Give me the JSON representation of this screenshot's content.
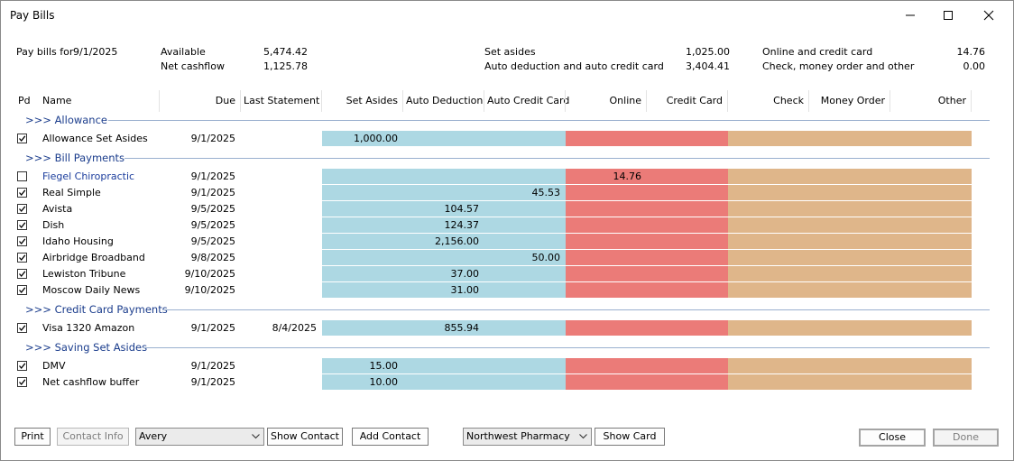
{
  "window": {
    "title": "Pay Bills"
  },
  "summary": {
    "pay_bills_for_label": "Pay bills for",
    "pay_bills_for_date": "9/1/2025",
    "available_label": "Available",
    "available_value": "5,474.42",
    "net_cashflow_label": "Net cashflow",
    "net_cashflow_value": "1,125.78",
    "set_asides_label": "Set asides",
    "set_asides_value": "1,025.00",
    "auto_label": "Auto deduction and auto credit card",
    "auto_value": "3,404.41",
    "online_label": "Online and credit card",
    "online_value": "14.76",
    "check_label": "Check, money order and other",
    "check_value": "0.00"
  },
  "columns": {
    "pd": "Pd",
    "name": "Name",
    "due": "Due",
    "last_statement": "Last Statement",
    "set_asides": "Set Asides",
    "auto_deduction": "Auto Deduction",
    "auto_credit_card": "Auto Credit Card",
    "online": "Online",
    "credit_card": "Credit Card",
    "check": "Check",
    "money_order": "Money Order",
    "other": "Other"
  },
  "groups": [
    {
      "label": ">>>  Allowance"
    },
    {
      "label": ">>>  Bill Payments"
    },
    {
      "label": ">>>  Credit Card Payments"
    },
    {
      "label": ">>>  Saving Set Asides"
    }
  ],
  "rows": [
    {
      "name": "Allowance Set Asides",
      "due": "9/1/2025",
      "last": "",
      "amount": "1,000.00",
      "checked": true
    },
    {
      "name": "Fiegel Chiropractic",
      "due": "9/1/2025",
      "last": "",
      "amount": "14.76",
      "checked": false
    },
    {
      "name": "Real Simple",
      "due": "9/1/2025",
      "last": "",
      "amount": "45.53",
      "checked": true
    },
    {
      "name": "Avista",
      "due": "9/5/2025",
      "last": "",
      "amount": "104.57",
      "checked": true
    },
    {
      "name": "Dish",
      "due": "9/5/2025",
      "last": "",
      "amount": "124.37",
      "checked": true
    },
    {
      "name": "Idaho Housing",
      "due": "9/5/2025",
      "last": "",
      "amount": "2,156.00",
      "checked": true
    },
    {
      "name": "Airbridge Broadband",
      "due": "9/8/2025",
      "last": "",
      "amount": "50.00",
      "checked": true
    },
    {
      "name": "Lewiston Tribune",
      "due": "9/10/2025",
      "last": "",
      "amount": "37.00",
      "checked": true
    },
    {
      "name": "Moscow Daily News",
      "due": "9/10/2025",
      "last": "",
      "amount": "31.00",
      "checked": true
    },
    {
      "name": "Visa 1320 Amazon",
      "due": "9/1/2025",
      "last": "8/4/2025",
      "amount": "855.94",
      "checked": true
    },
    {
      "name": "DMV",
      "due": "9/1/2025",
      "last": "",
      "amount": "15.00",
      "checked": true
    },
    {
      "name": "Net cashflow buffer",
      "due": "9/1/2025",
      "last": "",
      "amount": "10.00",
      "checked": true
    }
  ],
  "footer": {
    "print": "Print",
    "contact_info": "Contact Info",
    "contact_select": "Avery",
    "show_contact": "Show Contact",
    "add_contact": "Add Contact",
    "card_select": "Northwest Pharmacy",
    "show_card": "Show Card",
    "close": "Close",
    "done": "Done"
  }
}
